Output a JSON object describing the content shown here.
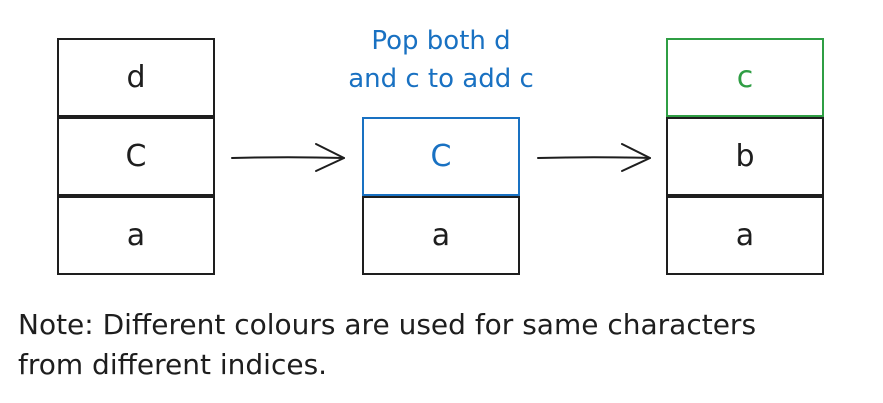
{
  "stacks": {
    "initial": {
      "cells": [
        "d",
        "C",
        "a"
      ]
    },
    "middle": {
      "cells": [
        "C",
        "a"
      ]
    },
    "final": {
      "cells": [
        "c",
        "b",
        "a"
      ]
    }
  },
  "annotation": {
    "line1": "Pop both d",
    "line2": "and c to add c"
  },
  "note": {
    "line1": "Note: Different colours are used for same characters",
    "line2": "from different indices."
  },
  "colors": {
    "ink": "#1e1e1e",
    "blue": "#1971c2",
    "green": "#2f9e44"
  },
  "icons": [
    "arrow-right-icon",
    "arrow-right-icon"
  ]
}
